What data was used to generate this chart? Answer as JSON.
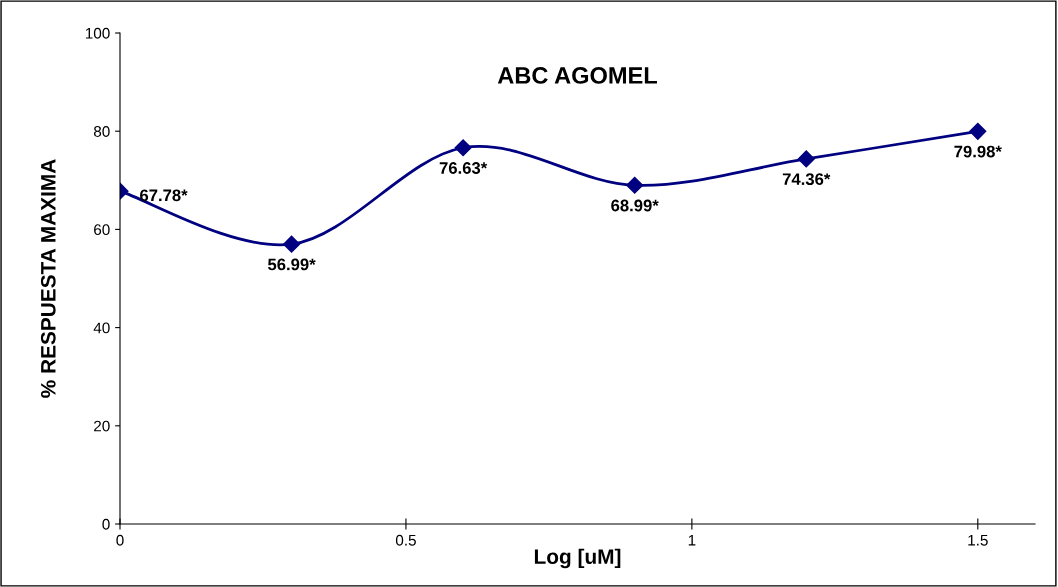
{
  "chart_data": {
    "type": "line",
    "title": "ABC AGOMEL",
    "xlabel": "Log [uM]",
    "ylabel": "% RESPUESTA MAXIMA",
    "x": [
      0,
      0.3,
      0.6,
      0.9,
      1.2,
      1.5
    ],
    "series": [
      {
        "color": "#000080",
        "values": [
          67.78,
          56.99,
          76.63,
          68.99,
          74.36,
          79.98
        ],
        "value_labels": [
          "67.78*",
          "56.99*",
          "76.63*",
          "68.99*",
          "74.36*",
          "79.98*"
        ]
      }
    ],
    "xlim": [
      0,
      1.6
    ],
    "xticks": [
      0,
      0.5,
      1,
      1.5
    ],
    "ylim": [
      0,
      100
    ],
    "yticks": [
      0,
      20,
      40,
      60,
      80,
      100
    ],
    "grid": false,
    "legend": false,
    "marker": "diamond",
    "line_style": "solid"
  }
}
